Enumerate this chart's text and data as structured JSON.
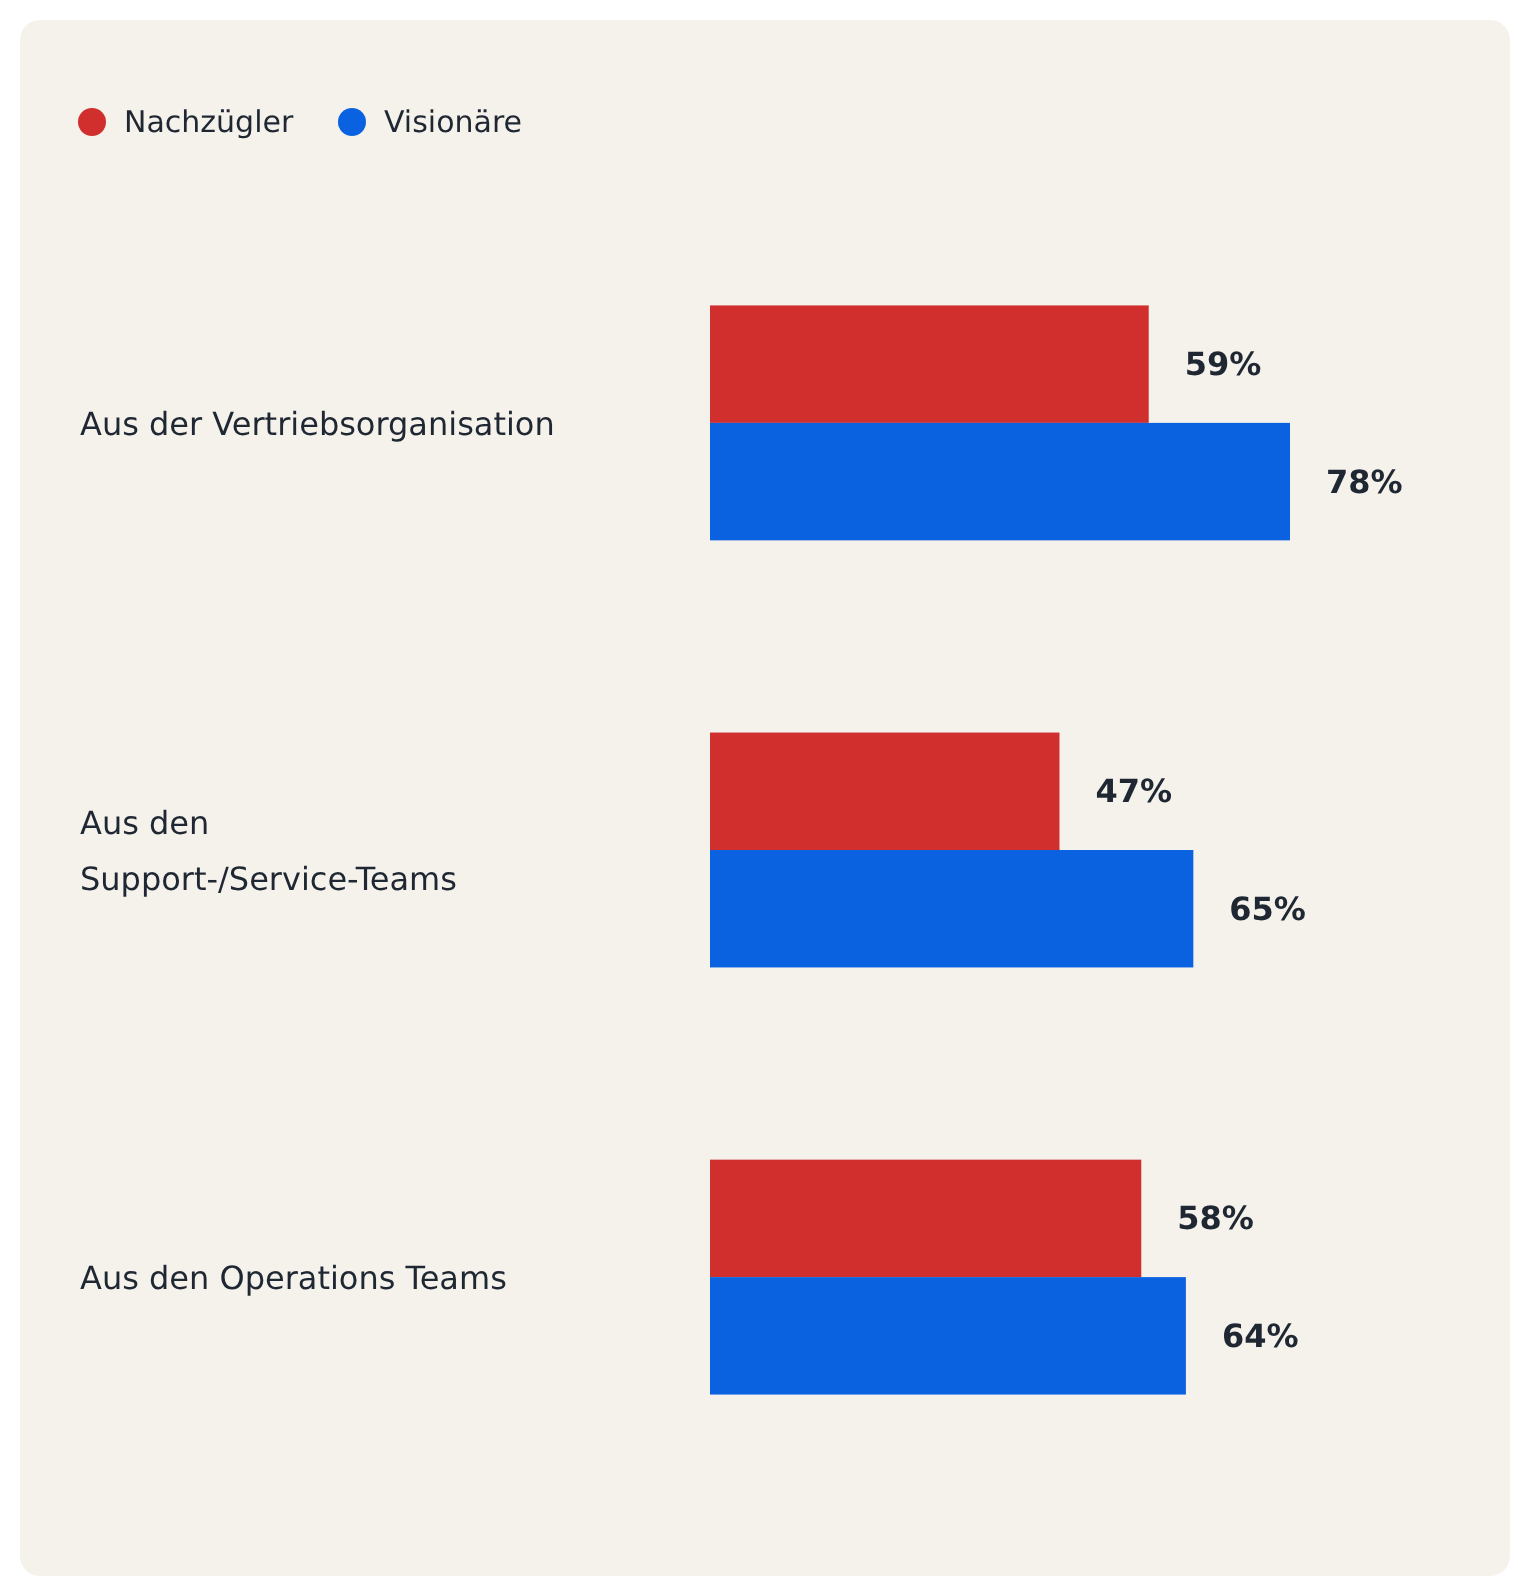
{
  "chart_data": {
    "type": "bar",
    "orientation": "horizontal",
    "categories": [
      "Aus der Vertriebsorganisation",
      "Aus den\nSupport-/Service-Teams",
      "Aus den Operations Teams"
    ],
    "series": [
      {
        "name": "Nachzügler",
        "color": "#d12f2e",
        "values": [
          59,
          47,
          58
        ],
        "value_labels": [
          "59%",
          "47%",
          "58%"
        ]
      },
      {
        "name": "Visionäre",
        "color": "#0a62e0",
        "values": [
          78,
          65,
          64
        ],
        "value_labels": [
          "78%",
          "65%",
          "64%"
        ]
      }
    ],
    "legend": "top left",
    "grid": false
  }
}
